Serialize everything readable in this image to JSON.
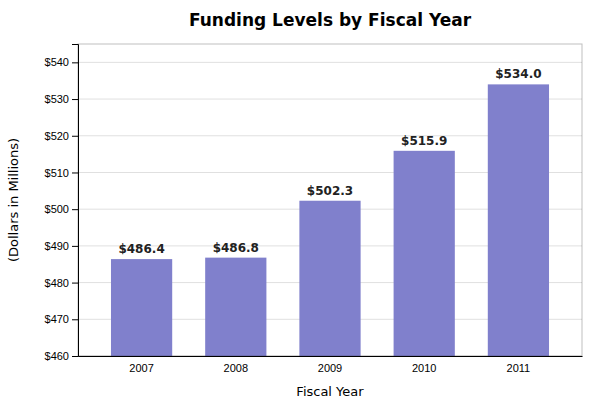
{
  "chart_data": {
    "type": "bar",
    "title": "Funding Levels by Fiscal Year",
    "xlabel": "Fiscal Year",
    "ylabel": "(Dollars in Millions)",
    "categories": [
      "2007",
      "2008",
      "2009",
      "2010",
      "2011"
    ],
    "values": [
      486.4,
      486.8,
      502.3,
      515.9,
      534.0
    ],
    "value_labels": [
      "$486.4",
      "$486.8",
      "$502.3",
      "$515.9",
      "$534.0"
    ],
    "color": "#8080CC",
    "ylim": [
      460,
      545
    ],
    "yticks": [
      {
        "value": 460,
        "label": "$460"
      },
      {
        "value": 470,
        "label": "$470"
      },
      {
        "value": 480,
        "label": "$480"
      },
      {
        "value": 490,
        "label": "$490"
      },
      {
        "value": 500,
        "label": "$500"
      },
      {
        "value": 510,
        "label": "$510"
      },
      {
        "value": 520,
        "label": "$520"
      },
      {
        "value": 530,
        "label": "$530"
      },
      {
        "value": 540,
        "label": "$540"
      }
    ],
    "grid": true,
    "data_labels": true
  }
}
